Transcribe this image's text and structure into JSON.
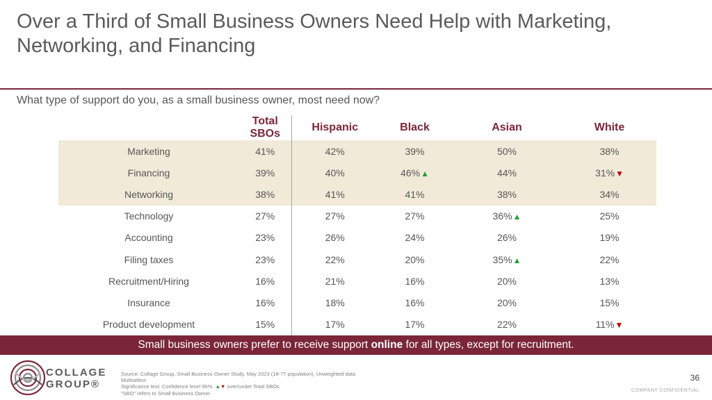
{
  "title": "Over a Third of Small Business Owners Need Help with Marketing, Networking, and Financing",
  "question": "What type of support do you, as a small business owner, most need now?",
  "table": {
    "headers": [
      "",
      "Total SBOs",
      "Hispanic",
      "Black",
      "Asian",
      "White"
    ],
    "rows": [
      {
        "label": "Marketing",
        "highlight": true,
        "cells": [
          {
            "v": "41%",
            "s": ""
          },
          {
            "v": "42%",
            "s": ""
          },
          {
            "v": "39%",
            "s": ""
          },
          {
            "v": "50%",
            "s": ""
          },
          {
            "v": "38%",
            "s": ""
          }
        ]
      },
      {
        "label": "Financing",
        "highlight": true,
        "cells": [
          {
            "v": "39%",
            "s": ""
          },
          {
            "v": "40%",
            "s": ""
          },
          {
            "v": "46%",
            "s": "up"
          },
          {
            "v": "44%",
            "s": ""
          },
          {
            "v": "31%",
            "s": "down"
          }
        ]
      },
      {
        "label": "Networking",
        "highlight": true,
        "cells": [
          {
            "v": "38%",
            "s": ""
          },
          {
            "v": "41%",
            "s": ""
          },
          {
            "v": "41%",
            "s": ""
          },
          {
            "v": "38%",
            "s": ""
          },
          {
            "v": "34%",
            "s": ""
          }
        ]
      },
      {
        "label": "Technology",
        "highlight": false,
        "cells": [
          {
            "v": "27%",
            "s": ""
          },
          {
            "v": "27%",
            "s": ""
          },
          {
            "v": "27%",
            "s": ""
          },
          {
            "v": "36%",
            "s": "up"
          },
          {
            "v": "25%",
            "s": ""
          }
        ]
      },
      {
        "label": "Accounting",
        "highlight": false,
        "cells": [
          {
            "v": "23%",
            "s": ""
          },
          {
            "v": "26%",
            "s": ""
          },
          {
            "v": "24%",
            "s": ""
          },
          {
            "v": "26%",
            "s": ""
          },
          {
            "v": "19%",
            "s": ""
          }
        ]
      },
      {
        "label": "Filing taxes",
        "highlight": false,
        "cells": [
          {
            "v": "23%",
            "s": ""
          },
          {
            "v": "22%",
            "s": ""
          },
          {
            "v": "20%",
            "s": ""
          },
          {
            "v": "35%",
            "s": "up"
          },
          {
            "v": "22%",
            "s": ""
          }
        ]
      },
      {
        "label": "Recruitment/Hiring",
        "highlight": false,
        "cells": [
          {
            "v": "16%",
            "s": ""
          },
          {
            "v": "21%",
            "s": ""
          },
          {
            "v": "16%",
            "s": ""
          },
          {
            "v": "20%",
            "s": ""
          },
          {
            "v": "13%",
            "s": ""
          }
        ]
      },
      {
        "label": "Insurance",
        "highlight": false,
        "cells": [
          {
            "v": "16%",
            "s": ""
          },
          {
            "v": "18%",
            "s": ""
          },
          {
            "v": "16%",
            "s": ""
          },
          {
            "v": "20%",
            "s": ""
          },
          {
            "v": "15%",
            "s": ""
          }
        ]
      },
      {
        "label": "Product development",
        "highlight": false,
        "cells": [
          {
            "v": "15%",
            "s": ""
          },
          {
            "v": "17%",
            "s": ""
          },
          {
            "v": "17%",
            "s": ""
          },
          {
            "v": "22%",
            "s": ""
          },
          {
            "v": "11%",
            "s": "down"
          }
        ]
      }
    ]
  },
  "banner": {
    "before": "Small business owners prefer to receive support ",
    "bold": "online",
    "after": " for all types, except for recruitment."
  },
  "logo": {
    "line1": "COLLAGE",
    "line2": "GROUP®"
  },
  "source": {
    "line1": "Source: Collage Group, Small Business Owner Study, May 2023 (18-77 population), Unweighted data",
    "line2": "Multiselect",
    "line3_pre": "Significance test: Confidence level 95%.",
    "line3_up": "▲",
    "line3_down": "▼",
    "line3_post": "over/under Total SBOs",
    "line4": "\"SBO\" refers to Small Business Owner"
  },
  "page_number": "36",
  "confidential": "COMPANY CONFIDENTIAL",
  "colors": {
    "brand": "#7a2638",
    "highlight_row": "#f1ead9",
    "up": "#1f9e3a",
    "down": "#c00000"
  },
  "glyphs": {
    "up": "▲",
    "down": "▼"
  }
}
